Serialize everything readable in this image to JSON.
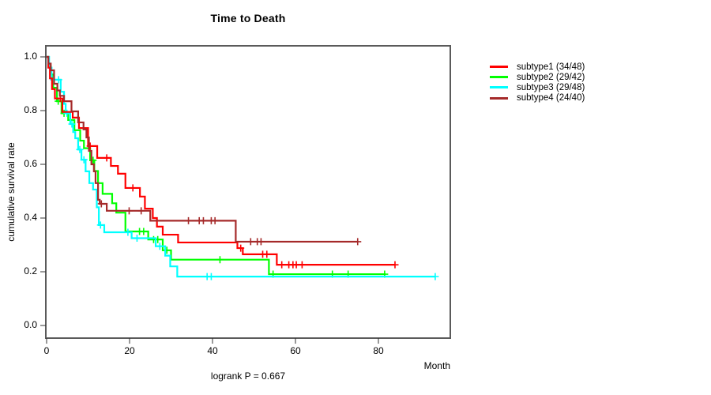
{
  "chart_data": {
    "type": "line",
    "subtype": "kaplan-meier-step-curves",
    "title": "Time to Death",
    "xlabel": "Month",
    "ylabel": "cumulative survival rate",
    "annotation": "logrank P = 0.667",
    "xlim": [
      0,
      97.5
    ],
    "ylim": [
      0,
      1
    ],
    "x_ticks": [
      "0",
      "20",
      "40",
      "60",
      "80"
    ],
    "y_ticks": [
      "0.0",
      "0.2",
      "0.4",
      "0.6",
      "0.8",
      "1.0"
    ],
    "grid": false,
    "legend_position": "right-outside",
    "axis_color": "#5a5a5a",
    "tick_color": "#333333",
    "censor_mark": "plus",
    "series": [
      {
        "name": "subtype1 (34/48)",
        "color": "#ff0000",
        "steps": [
          [
            0,
            1.0
          ],
          [
            0.4,
            0.96
          ],
          [
            0.8,
            0.92
          ],
          [
            1.3,
            0.88
          ],
          [
            2,
            0.845
          ],
          [
            3.8,
            0.795
          ],
          [
            6.3,
            0.774
          ],
          [
            7.8,
            0.735
          ],
          [
            10,
            0.668
          ],
          [
            12.2,
            0.624
          ],
          [
            15.5,
            0.594
          ],
          [
            17.2,
            0.565
          ],
          [
            19,
            0.512
          ],
          [
            22.5,
            0.48
          ],
          [
            23.7,
            0.435
          ],
          [
            25.6,
            0.4
          ],
          [
            26.6,
            0.368
          ],
          [
            28,
            0.338
          ],
          [
            31.7,
            0.309
          ],
          [
            46,
            0.288
          ],
          [
            47.3,
            0.265
          ],
          [
            55.5,
            0.226
          ],
          [
            84,
            0.226
          ]
        ],
        "censors": [
          [
            3.3,
            0.845
          ],
          [
            10.5,
            0.668
          ],
          [
            14.5,
            0.624
          ],
          [
            20.8,
            0.512
          ],
          [
            46.8,
            0.288
          ],
          [
            52.1,
            0.265
          ],
          [
            53.1,
            0.265
          ],
          [
            56.7,
            0.226
          ],
          [
            58.4,
            0.226
          ],
          [
            59.4,
            0.226
          ],
          [
            60.2,
            0.226
          ],
          [
            61.6,
            0.226
          ],
          [
            84,
            0.226
          ]
        ]
      },
      {
        "name": "subtype2 (29/42)",
        "color": "#00ff00",
        "steps": [
          [
            0,
            1.0
          ],
          [
            0.5,
            0.965
          ],
          [
            1,
            0.935
          ],
          [
            1.6,
            0.885
          ],
          [
            2.5,
            0.835
          ],
          [
            3.6,
            0.79
          ],
          [
            5.2,
            0.765
          ],
          [
            6.7,
            0.727
          ],
          [
            8.1,
            0.688
          ],
          [
            9,
            0.66
          ],
          [
            10.5,
            0.615
          ],
          [
            11.5,
            0.575
          ],
          [
            12.4,
            0.53
          ],
          [
            13.5,
            0.49
          ],
          [
            15.8,
            0.455
          ],
          [
            16.8,
            0.42
          ],
          [
            19,
            0.35
          ],
          [
            24.5,
            0.32
          ],
          [
            28,
            0.28
          ],
          [
            30,
            0.245
          ],
          [
            53.6,
            0.191
          ],
          [
            81.7,
            0.191
          ]
        ],
        "censors": [
          [
            2.8,
            0.835
          ],
          [
            4.2,
            0.79
          ],
          [
            11.2,
            0.615
          ],
          [
            22.4,
            0.35
          ],
          [
            23.4,
            0.35
          ],
          [
            25.8,
            0.32
          ],
          [
            26.8,
            0.32
          ],
          [
            29,
            0.28
          ],
          [
            41.8,
            0.245
          ],
          [
            54.6,
            0.191
          ],
          [
            68.9,
            0.191
          ],
          [
            72.7,
            0.191
          ],
          [
            81.5,
            0.191
          ]
        ]
      },
      {
        "name": "subtype3 (29/48)",
        "color": "#00ffff",
        "steps": [
          [
            0,
            1.0
          ],
          [
            0.6,
            0.96
          ],
          [
            1.2,
            0.915
          ],
          [
            3.4,
            0.87
          ],
          [
            4.2,
            0.825
          ],
          [
            4.6,
            0.79
          ],
          [
            5.7,
            0.75
          ],
          [
            6.4,
            0.72
          ],
          [
            6.9,
            0.697
          ],
          [
            7.6,
            0.655
          ],
          [
            8.4,
            0.617
          ],
          [
            9.4,
            0.574
          ],
          [
            10.3,
            0.53
          ],
          [
            11.2,
            0.506
          ],
          [
            12.1,
            0.44
          ],
          [
            12.6,
            0.374
          ],
          [
            13.9,
            0.347
          ],
          [
            20.5,
            0.325
          ],
          [
            26.3,
            0.295
          ],
          [
            28.6,
            0.26
          ],
          [
            29.8,
            0.22
          ],
          [
            31.5,
            0.182
          ],
          [
            93.7,
            0.182
          ]
        ],
        "censors": [
          [
            1.7,
            0.915
          ],
          [
            2.9,
            0.915
          ],
          [
            4.9,
            0.79
          ],
          [
            6.1,
            0.75
          ],
          [
            8,
            0.655
          ],
          [
            9,
            0.617
          ],
          [
            13,
            0.374
          ],
          [
            19.6,
            0.347
          ],
          [
            21.8,
            0.325
          ],
          [
            27.3,
            0.295
          ],
          [
            38.7,
            0.182
          ],
          [
            39.7,
            0.182
          ],
          [
            93.7,
            0.182
          ]
        ]
      },
      {
        "name": "subtype4 (24/40)",
        "color": "#a52a2a",
        "steps": [
          [
            0,
            1.0
          ],
          [
            0.4,
            0.975
          ],
          [
            1,
            0.95
          ],
          [
            1.8,
            0.9
          ],
          [
            2.6,
            0.875
          ],
          [
            3.2,
            0.855
          ],
          [
            4.2,
            0.835
          ],
          [
            6,
            0.797
          ],
          [
            7.6,
            0.756
          ],
          [
            8.9,
            0.73
          ],
          [
            9.6,
            0.7
          ],
          [
            10.2,
            0.65
          ],
          [
            10.8,
            0.6
          ],
          [
            11.4,
            0.574
          ],
          [
            11.8,
            0.53
          ],
          [
            12.4,
            0.468
          ],
          [
            12.8,
            0.453
          ],
          [
            14.5,
            0.427
          ],
          [
            25,
            0.39
          ],
          [
            45.6,
            0.312
          ],
          [
            75,
            0.312
          ]
        ],
        "censors": [
          [
            13.2,
            0.453
          ],
          [
            19.9,
            0.427
          ],
          [
            22.8,
            0.427
          ],
          [
            34.2,
            0.39
          ],
          [
            36.8,
            0.39
          ],
          [
            37.8,
            0.39
          ],
          [
            39.7,
            0.39
          ],
          [
            40.6,
            0.39
          ],
          [
            49.2,
            0.312
          ],
          [
            50.8,
            0.312
          ],
          [
            51.7,
            0.312
          ],
          [
            75,
            0.312
          ]
        ]
      }
    ]
  }
}
